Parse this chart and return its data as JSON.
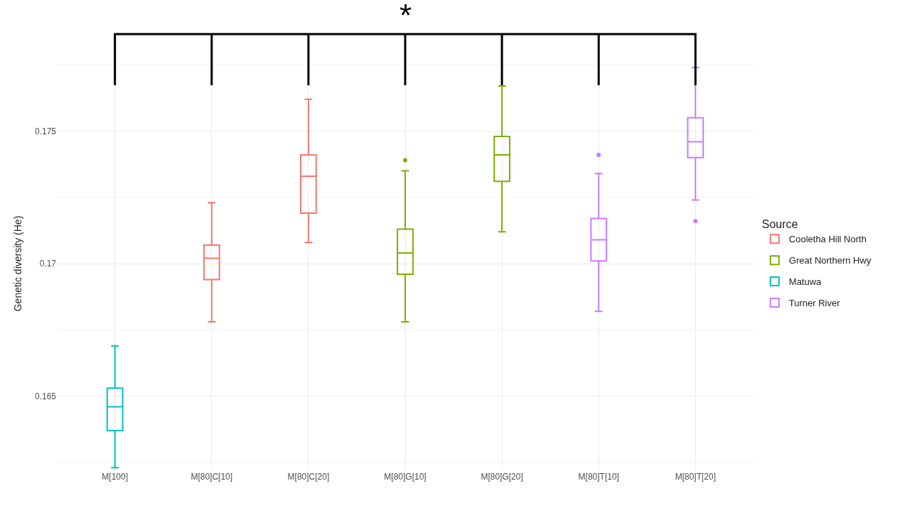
{
  "chart_data": {
    "type": "box",
    "ylabel": "Genetic diversity (He)",
    "legend_title": "Source",
    "categories": [
      "M[100]",
      "M[80]C[10]",
      "M[80]C[20]",
      "M[80]G[10]",
      "M[80]G[20]",
      "M[80]T[10]",
      "M[80]T[20]"
    ],
    "ylim": [
      0.1622,
      0.1778
    ],
    "yticks": [
      0.165,
      0.17,
      0.175
    ],
    "grid": true,
    "legend": "right",
    "annotations": [
      "*"
    ],
    "series": [
      {
        "name": "Cooletha Hill North",
        "color": "#f8766d",
        "boxes": [
          null,
          {
            "low": 0.1678,
            "q1": 0.1694,
            "median": 0.1702,
            "q3": 0.1707,
            "high": 0.1723
          },
          {
            "low": 0.1708,
            "q1": 0.1719,
            "median": 0.1733,
            "q3": 0.1741,
            "high": 0.1762
          },
          null,
          null,
          null,
          null
        ]
      },
      {
        "name": "Great Northern Hwy",
        "color": "#7cae00",
        "boxes": [
          null,
          null,
          null,
          {
            "low": 0.1678,
            "q1": 0.1696,
            "median": 0.1704,
            "q3": 0.1713,
            "high": 0.1735,
            "outliers": [
              0.1739
            ]
          },
          {
            "low": 0.1712,
            "q1": 0.1731,
            "median": 0.1741,
            "q3": 0.1748,
            "high": 0.1767
          },
          null,
          null
        ]
      },
      {
        "name": "Matuwa",
        "color": "#00bfc4",
        "boxes": [
          {
            "low": 0.1623,
            "q1": 0.1637,
            "median": 0.1646,
            "q3": 0.1653,
            "high": 0.1669
          },
          null,
          null,
          null,
          null,
          null,
          null
        ]
      },
      {
        "name": "Turner River",
        "color": "#c77cff",
        "boxes": [
          null,
          null,
          null,
          null,
          null,
          {
            "low": 0.1682,
            "q1": 0.1701,
            "median": 0.1709,
            "q3": 0.1717,
            "high": 0.1734,
            "outliers": [
              0.1741
            ]
          },
          {
            "low": 0.1724,
            "q1": 0.174,
            "median": 0.1746,
            "q3": 0.1755,
            "high": 0.1774,
            "outliers": [
              0.1716
            ]
          }
        ]
      }
    ]
  }
}
